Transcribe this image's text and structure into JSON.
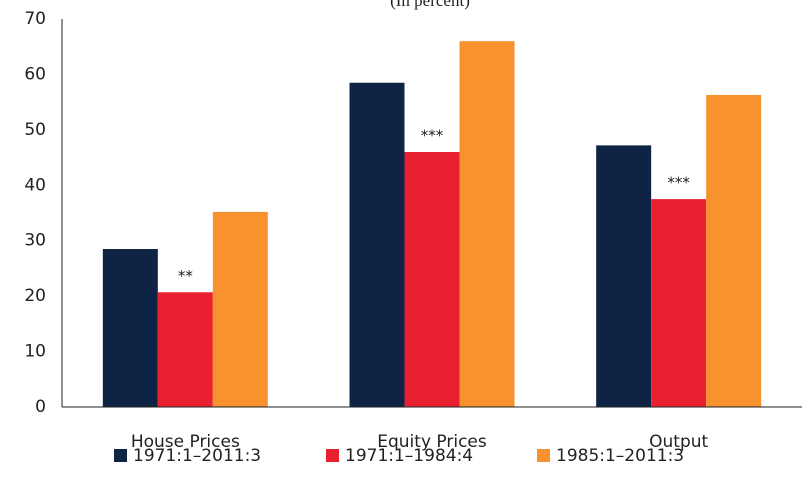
{
  "chart_data": {
    "type": "bar",
    "subtitle": "(In percent)",
    "categories": [
      "House Prices",
      "Equity Prices",
      "Output"
    ],
    "series": [
      {
        "name": "1971:1–2011:3",
        "color": "#0f2445",
        "values": [
          28.5,
          58.5,
          47.2
        ]
      },
      {
        "name": "1971:1–1984:4",
        "color": "#e8202f",
        "values": [
          20.7,
          46,
          37.5
        ],
        "annotations": [
          "**",
          "***",
          "***"
        ]
      },
      {
        "name": "1985:1–2011:3",
        "color": "#f7922e",
        "values": [
          35.2,
          66,
          56.3
        ]
      }
    ],
    "ylim": [
      0,
      70
    ],
    "yticks": [
      0,
      10,
      20,
      30,
      40,
      50,
      60,
      70
    ],
    "grid": false,
    "legend": "bottom"
  }
}
